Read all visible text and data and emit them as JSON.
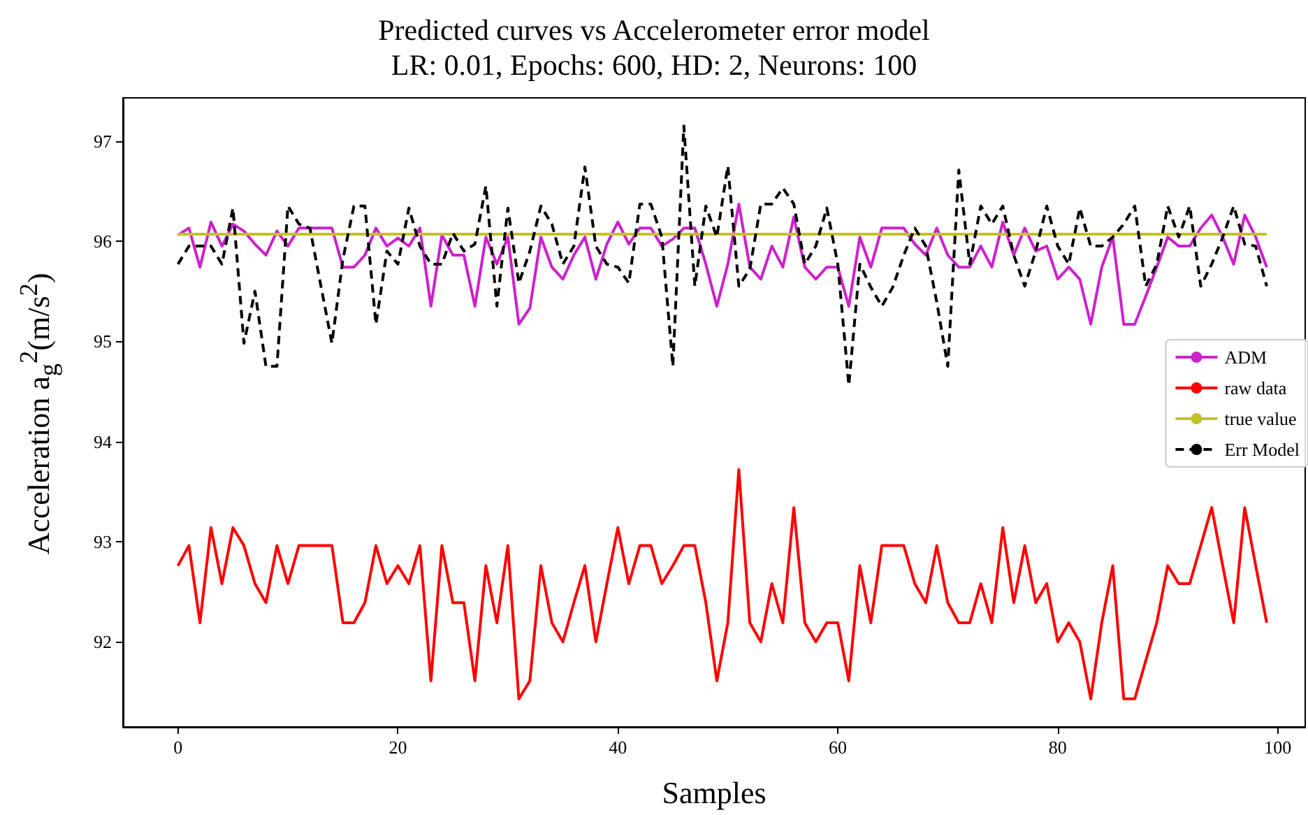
{
  "chart_data": {
    "type": "line",
    "title": "Predicted curves vs Accelerometer error model",
    "subtitle": "LR: 0.01, Epochs: 600, HD: 2, Neurons: 100",
    "xlabel": "Samples",
    "ylabel": "Acceleration a$_{g}$$^{2}$(m/s$^{2}$)",
    "x": [
      0,
      1,
      2,
      3,
      4,
      5,
      6,
      7,
      8,
      9,
      10,
      11,
      12,
      13,
      14,
      15,
      16,
      17,
      18,
      19,
      20,
      21,
      22,
      23,
      24,
      25,
      26,
      27,
      28,
      29,
      30,
      31,
      32,
      33,
      34,
      35,
      36,
      37,
      38,
      39,
      40,
      41,
      42,
      43,
      44,
      45,
      46,
      47,
      48,
      49,
      50,
      51,
      52,
      53,
      54,
      55,
      56,
      57,
      58,
      59,
      60,
      61,
      62,
      63,
      64,
      65,
      66,
      67,
      68,
      69,
      70,
      71,
      72,
      73,
      74,
      75,
      76,
      77,
      78,
      79,
      80,
      81,
      82,
      83,
      84,
      85,
      86,
      87,
      88,
      89,
      90,
      91,
      92,
      93,
      94,
      95,
      96,
      97,
      98,
      99
    ],
    "series": [
      {
        "name": "ADM",
        "color": "#cc22cc",
        "line_style": "solid",
        "values": [
          96.06,
          96.13,
          95.74,
          96.19,
          95.95,
          96.17,
          96.1,
          95.97,
          95.86,
          96.1,
          95.95,
          96.13,
          96.13,
          96.13,
          96.13,
          95.74,
          95.74,
          95.86,
          96.13,
          95.95,
          96.03,
          95.95,
          96.13,
          95.35,
          96.06,
          95.86,
          95.86,
          95.35,
          96.04,
          95.77,
          96.04,
          95.17,
          95.33,
          96.04,
          95.74,
          95.62,
          95.86,
          96.04,
          95.62,
          95.97,
          96.19,
          95.97,
          96.13,
          96.13,
          95.95,
          96.02,
          96.13,
          96.13,
          95.77,
          95.35,
          95.77,
          96.37,
          95.74,
          95.62,
          95.95,
          95.74,
          96.24,
          95.74,
          95.62,
          95.74,
          95.74,
          95.35,
          96.04,
          95.74,
          96.13,
          96.13,
          96.13,
          95.97,
          95.86,
          96.13,
          95.86,
          95.74,
          95.74,
          95.95,
          95.74,
          96.19,
          95.86,
          96.13,
          95.9,
          95.95,
          95.62,
          95.74,
          95.62,
          95.17,
          95.74,
          96.04,
          95.17,
          95.17,
          95.45,
          95.74,
          96.04,
          95.95,
          95.95,
          96.13,
          96.26,
          96.04,
          95.77,
          96.26,
          96.04,
          95.74
        ]
      },
      {
        "name": "raw data",
        "color": "#ff0000",
        "line_style": "solid",
        "values": [
          92.76,
          92.96,
          92.19,
          93.14,
          92.58,
          93.14,
          92.96,
          92.58,
          92.39,
          92.96,
          92.58,
          92.96,
          92.96,
          92.96,
          92.96,
          92.19,
          92.19,
          92.39,
          92.96,
          92.58,
          92.76,
          92.58,
          92.96,
          91.61,
          92.96,
          92.39,
          92.39,
          91.61,
          92.76,
          92.19,
          92.96,
          91.43,
          91.61,
          92.76,
          92.19,
          92.0,
          92.39,
          92.76,
          92.0,
          92.58,
          93.14,
          92.58,
          92.96,
          92.96,
          92.58,
          92.76,
          92.96,
          92.96,
          92.39,
          91.61,
          92.19,
          93.72,
          92.19,
          92.0,
          92.58,
          92.19,
          93.34,
          92.19,
          92.0,
          92.19,
          92.19,
          91.61,
          92.76,
          92.19,
          92.96,
          92.96,
          92.96,
          92.58,
          92.39,
          92.96,
          92.39,
          92.19,
          92.19,
          92.58,
          92.19,
          93.14,
          92.39,
          92.96,
          92.39,
          92.58,
          92.0,
          92.19,
          92.0,
          91.43,
          92.19,
          92.76,
          91.43,
          91.43,
          91.81,
          92.19,
          92.76,
          92.58,
          92.58,
          92.96,
          93.34,
          92.76,
          92.19,
          93.34,
          92.76,
          92.19
        ]
      },
      {
        "name": "true value",
        "color": "#c4c02a",
        "line_style": "solid",
        "values": [
          96.07,
          96.07,
          96.07,
          96.07,
          96.07,
          96.07,
          96.07,
          96.07,
          96.07,
          96.07,
          96.07,
          96.07,
          96.07,
          96.07,
          96.07,
          96.07,
          96.07,
          96.07,
          96.07,
          96.07,
          96.07,
          96.07,
          96.07,
          96.07,
          96.07,
          96.07,
          96.07,
          96.07,
          96.07,
          96.07,
          96.07,
          96.07,
          96.07,
          96.07,
          96.07,
          96.07,
          96.07,
          96.07,
          96.07,
          96.07,
          96.07,
          96.07,
          96.07,
          96.07,
          96.07,
          96.07,
          96.07,
          96.07,
          96.07,
          96.07,
          96.07,
          96.07,
          96.07,
          96.07,
          96.07,
          96.07,
          96.07,
          96.07,
          96.07,
          96.07,
          96.07,
          96.07,
          96.07,
          96.07,
          96.07,
          96.07,
          96.07,
          96.07,
          96.07,
          96.07,
          96.07,
          96.07,
          96.07,
          96.07,
          96.07,
          96.07,
          96.07,
          96.07,
          96.07,
          96.07,
          96.07,
          96.07,
          96.07,
          96.07,
          96.07,
          96.07,
          96.07,
          96.07,
          96.07,
          96.07,
          96.07,
          96.07,
          96.07,
          96.07,
          96.07,
          96.07,
          96.07,
          96.07,
          96.07,
          96.07
        ]
      },
      {
        "name": "Err Model",
        "color": "#000000",
        "line_style": "dashed",
        "values": [
          95.77,
          95.95,
          95.95,
          95.95,
          95.77,
          96.33,
          94.98,
          95.5,
          94.75,
          94.75,
          96.35,
          96.17,
          96.13,
          95.55,
          94.98,
          95.82,
          96.35,
          96.35,
          95.17,
          95.9,
          95.77,
          96.33,
          95.95,
          95.77,
          95.77,
          96.08,
          95.9,
          95.97,
          96.55,
          95.35,
          96.33,
          95.58,
          95.9,
          96.35,
          96.17,
          95.77,
          95.95,
          96.74,
          95.95,
          95.77,
          95.74,
          95.58,
          96.37,
          96.37,
          96.04,
          94.75,
          97.15,
          95.55,
          96.35,
          96.04,
          96.75,
          95.55,
          95.72,
          96.37,
          96.37,
          96.53,
          96.37,
          95.77,
          95.95,
          96.33,
          95.77,
          94.56,
          95.77,
          95.54,
          95.35,
          95.54,
          95.86,
          96.13,
          95.95,
          95.39,
          94.75,
          96.71,
          95.77,
          96.35,
          96.17,
          96.35,
          95.86,
          95.55,
          95.9,
          96.35,
          95.95,
          95.77,
          96.33,
          95.95,
          95.95,
          96.04,
          96.17,
          96.35,
          95.55,
          95.77,
          96.35,
          96.04,
          96.35,
          95.55,
          95.77,
          96.04,
          96.35,
          95.97,
          95.95,
          95.55
        ]
      }
    ],
    "xlim": [
      -5,
      102.5
    ],
    "ylim": [
      91.15,
      97.43
    ],
    "xticks": [
      0,
      20,
      40,
      60,
      80,
      100
    ],
    "yticks": [
      92,
      93,
      94,
      95,
      96,
      97
    ],
    "grid": false,
    "legend": "right",
    "marker": "none"
  }
}
